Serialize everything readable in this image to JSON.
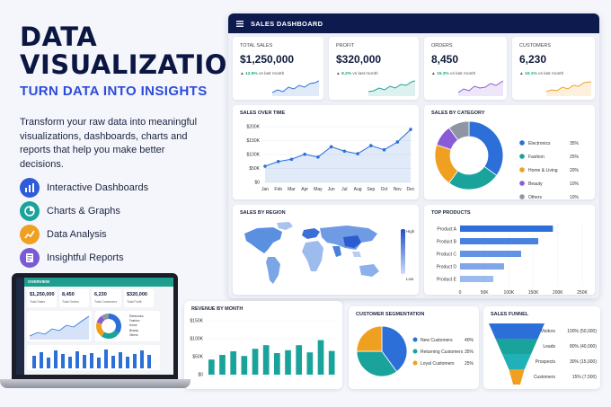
{
  "hero": {
    "title_line1": "DATA",
    "title_line2": "VISUALIZATION",
    "subtitle": "TURN DATA INTO INSIGHTS",
    "description": "Transform your raw data into meaningful visualizations, dashboards, charts and reports that help you make better decisions."
  },
  "features": [
    {
      "label": "Interactive Dashboards",
      "icon": "bar-chart-icon",
      "color": "#2d5bd9"
    },
    {
      "label": "Charts & Graphs",
      "icon": "pie-chart-icon",
      "color": "#1aa39a"
    },
    {
      "label": "Data Analysis",
      "icon": "line-chart-icon",
      "color": "#f0a020"
    },
    {
      "label": "Insightful Reports",
      "icon": "report-icon",
      "color": "#7a5bd6"
    }
  ],
  "dashboard": {
    "title": "SALES DASHBOARD",
    "kpis": [
      {
        "label": "TOTAL SALES",
        "value": "$1,250,000",
        "delta": "12.5%",
        "delta_text": "vs last month",
        "color": "#2d6fd9"
      },
      {
        "label": "PROFIT",
        "value": "$320,000",
        "delta": "8.2%",
        "delta_text": "vs last month",
        "color": "#1aa39a"
      },
      {
        "label": "ORDERS",
        "value": "8,450",
        "delta": "15.3%",
        "delta_text": "vs last month",
        "color": "#8a5bd6"
      },
      {
        "label": "CUSTOMERS",
        "value": "6,230",
        "delta": "10.1%",
        "delta_text": "vs last month",
        "color": "#f0a020"
      }
    ],
    "sales_over_time_title": "SALES OVER TIME",
    "sales_by_category_title": "SALES BY CATEGORY",
    "sales_by_region_title": "SALES BY REGION",
    "region_legend": {
      "high": "High",
      "low": "Low"
    },
    "top_products_title": "TOP PRODUCTS"
  },
  "bottom": {
    "revenue_title": "REVENUE BY MONTH",
    "segmentation_title": "CUSTOMER SEGMENTATION",
    "funnel_title": "SALES FUNNEL"
  },
  "laptop": {
    "header": "OVERVIEW",
    "kpis": [
      {
        "value": "$1,250,000",
        "label": "Total Sales"
      },
      {
        "value": "8,450",
        "label": "Total Orders"
      },
      {
        "value": "6,230",
        "label": "Total Customers"
      },
      {
        "value": "$320,000",
        "label": "Total Profit"
      }
    ],
    "pie_legend": [
      "Electronics",
      "Fashion",
      "Home",
      "Beauty",
      "Others"
    ]
  },
  "chart_data": [
    {
      "type": "area",
      "title": "SALES OVER TIME",
      "categories": [
        "Jan",
        "Feb",
        "Mar",
        "Apr",
        "May",
        "Jun",
        "Jul",
        "Aug",
        "Sep",
        "Oct",
        "Nov",
        "Dec"
      ],
      "values": [
        58,
        75,
        83,
        101,
        91,
        128,
        112,
        103,
        132,
        117,
        145,
        190
      ],
      "y_ticks": [
        "$200K",
        "$150K",
        "$100K",
        "$50K",
        "$0"
      ],
      "ylim": [
        0,
        200
      ],
      "color": "#2d6fd9"
    },
    {
      "type": "pie",
      "title": "SALES BY CATEGORY",
      "labels": [
        "Electronics",
        "Fashion",
        "Home & Living",
        "Beauty",
        "Others"
      ],
      "values": [
        35,
        25,
        20,
        10,
        10
      ],
      "value_labels": [
        "35%",
        "25%",
        "20%",
        "10%",
        "10%"
      ],
      "colors": [
        "#2d6fd9",
        "#1aa39a",
        "#f0a020",
        "#8a5bd6",
        "#8f96a3"
      ]
    },
    {
      "type": "bar",
      "title": "TOP PRODUCTS",
      "categories": [
        "Product A",
        "Product B",
        "Product C",
        "Product D",
        "Product E"
      ],
      "values": [
        190,
        160,
        125,
        90,
        68
      ],
      "x_ticks": [
        "0",
        "50K",
        "100K",
        "150K",
        "200K",
        "250K"
      ],
      "xlim": [
        0,
        250
      ],
      "color": "#2d6fd9"
    },
    {
      "type": "bar",
      "title": "REVENUE BY MONTH",
      "values": [
        42,
        55,
        65,
        52,
        72,
        82,
        60,
        68,
        82,
        62,
        96,
        66
      ],
      "y_ticks": [
        "$150K",
        "$100K",
        "$50K",
        "$0"
      ],
      "ylim": [
        0,
        150
      ],
      "color": "#1aa39a"
    },
    {
      "type": "pie",
      "title": "CUSTOMER SEGMENTATION",
      "labels": [
        "New Customers",
        "Returning Customers",
        "Loyal Customers"
      ],
      "values": [
        40,
        35,
        25
      ],
      "value_labels": [
        "40%",
        "35%",
        "25%"
      ],
      "colors": [
        "#2d6fd9",
        "#1aa39a",
        "#f0a020"
      ]
    },
    {
      "type": "funnel",
      "title": "SALES FUNNEL",
      "labels": [
        "Visitors",
        "Leads",
        "Prospects",
        "Customers"
      ],
      "values": [
        100,
        80,
        30,
        15
      ],
      "value_labels": [
        "100% (50,000)",
        "80% (40,000)",
        "30% (15,000)",
        "15% (7,500)"
      ],
      "colors": [
        "#2d6fd9",
        "#1aa39a",
        "#1fb0b8",
        "#f0a020"
      ]
    }
  ]
}
